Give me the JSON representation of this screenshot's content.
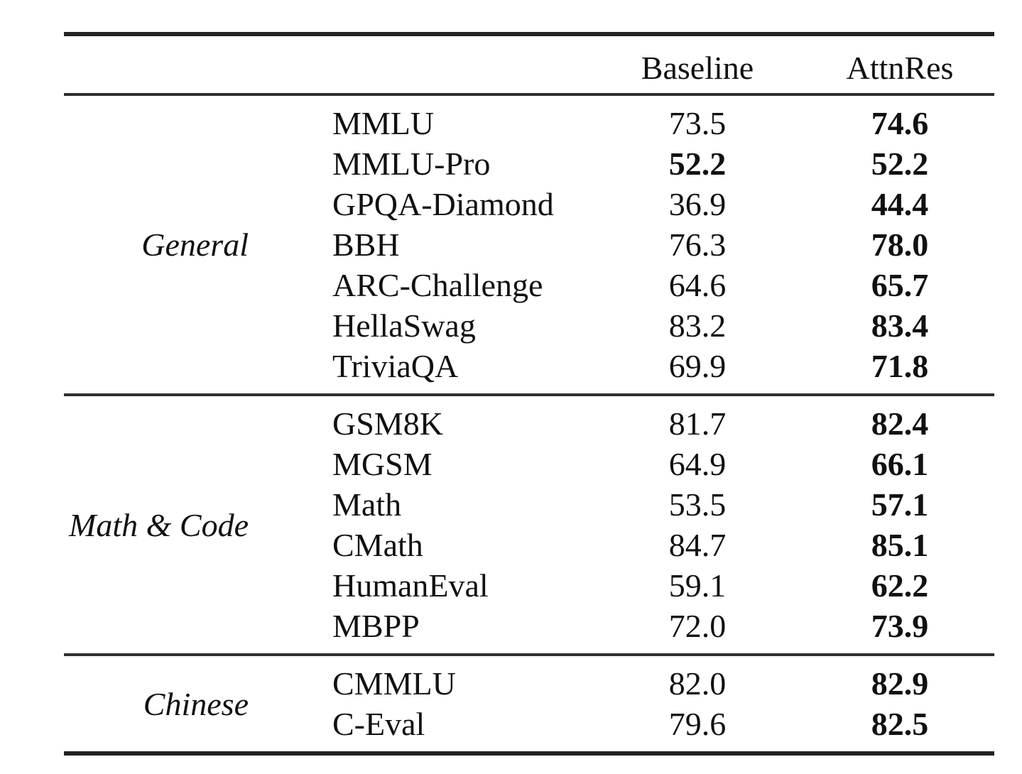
{
  "table": {
    "columns": [
      "Baseline",
      "AttnRes"
    ],
    "sections": [
      {
        "category": "General",
        "rows": [
          {
            "benchmark": "MMLU",
            "baseline": "73.5",
            "baseline_bold": false,
            "attnres": "74.6",
            "attnres_bold": true
          },
          {
            "benchmark": "MMLU-Pro",
            "baseline": "52.2",
            "baseline_bold": true,
            "attnres": "52.2",
            "attnres_bold": true
          },
          {
            "benchmark": "GPQA-Diamond",
            "baseline": "36.9",
            "baseline_bold": false,
            "attnres": "44.4",
            "attnres_bold": true
          },
          {
            "benchmark": "BBH",
            "baseline": "76.3",
            "baseline_bold": false,
            "attnres": "78.0",
            "attnres_bold": true
          },
          {
            "benchmark": "ARC-Challenge",
            "baseline": "64.6",
            "baseline_bold": false,
            "attnres": "65.7",
            "attnres_bold": true
          },
          {
            "benchmark": "HellaSwag",
            "baseline": "83.2",
            "baseline_bold": false,
            "attnres": "83.4",
            "attnres_bold": true
          },
          {
            "benchmark": "TriviaQA",
            "baseline": "69.9",
            "baseline_bold": false,
            "attnres": "71.8",
            "attnres_bold": true
          }
        ]
      },
      {
        "category": "Math & Code",
        "rows": [
          {
            "benchmark": "GSM8K",
            "baseline": "81.7",
            "baseline_bold": false,
            "attnres": "82.4",
            "attnres_bold": true
          },
          {
            "benchmark": "MGSM",
            "baseline": "64.9",
            "baseline_bold": false,
            "attnres": "66.1",
            "attnres_bold": true
          },
          {
            "benchmark": "Math",
            "baseline": "53.5",
            "baseline_bold": false,
            "attnres": "57.1",
            "attnres_bold": true
          },
          {
            "benchmark": "CMath",
            "baseline": "84.7",
            "baseline_bold": false,
            "attnres": "85.1",
            "attnres_bold": true
          },
          {
            "benchmark": "HumanEval",
            "baseline": "59.1",
            "baseline_bold": false,
            "attnres": "62.2",
            "attnres_bold": true
          },
          {
            "benchmark": "MBPP",
            "baseline": "72.0",
            "baseline_bold": false,
            "attnres": "73.9",
            "attnres_bold": true
          }
        ]
      },
      {
        "category": "Chinese",
        "rows": [
          {
            "benchmark": "CMMLU",
            "baseline": "82.0",
            "baseline_bold": false,
            "attnres": "82.9",
            "attnres_bold": true
          },
          {
            "benchmark": "C-Eval",
            "baseline": "79.6",
            "baseline_bold": false,
            "attnres": "82.5",
            "attnres_bold": true
          }
        ]
      }
    ]
  }
}
